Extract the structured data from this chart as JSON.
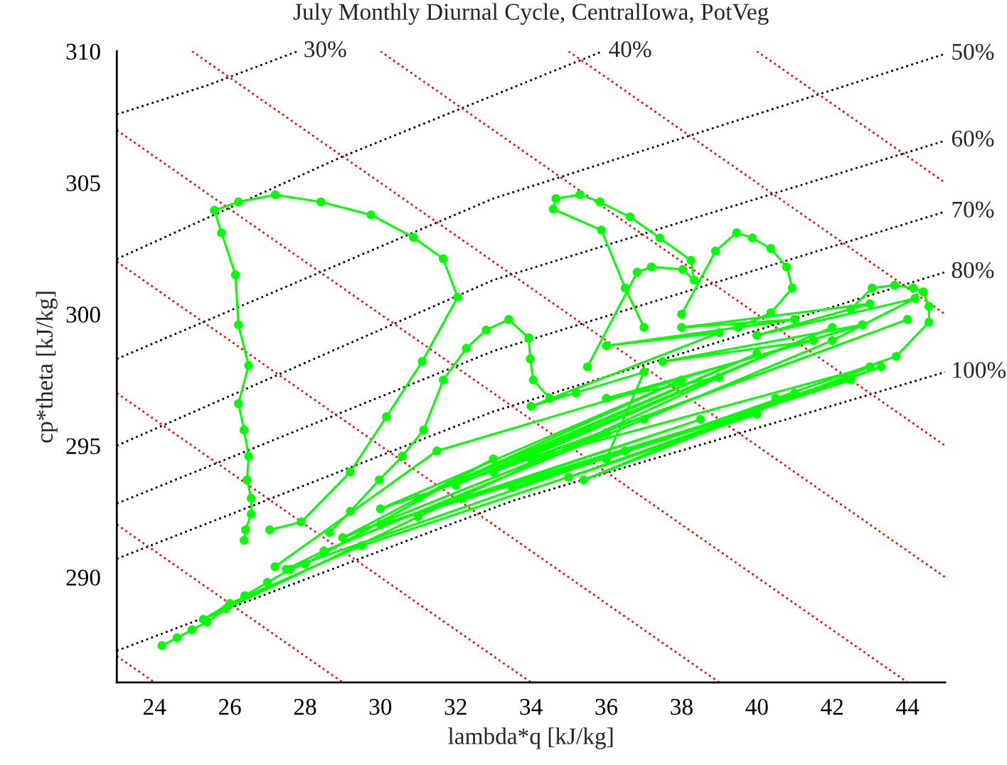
{
  "chart_data": {
    "type": "line",
    "title": "July Monthly Diurnal Cycle, CentralIowa, PotVeg",
    "xlabel": "lambda*q [kJ/kg]",
    "ylabel": "cp*theta [kJ/kg]",
    "xlim": [
      23,
      45
    ],
    "ylim": [
      286,
      310
    ],
    "xticks": [
      24,
      26,
      28,
      30,
      32,
      34,
      36,
      38,
      40,
      42,
      44
    ],
    "yticks": [
      290,
      295,
      300,
      305,
      310
    ],
    "grid": false,
    "legend": false,
    "series": [
      {
        "color": "#000000",
        "line_style": "dotted",
        "marker": "none",
        "x": [
          23,
          25.4,
          27.8
        ],
        "values": [
          307.6,
          308.7,
          310
        ]
      },
      {
        "color": "#000000",
        "line_style": "dotted",
        "marker": "none",
        "x": [
          23,
          29,
          35.9
        ],
        "values": [
          302.1,
          306.0,
          310
        ]
      },
      {
        "color": "#000000",
        "line_style": "dotted",
        "marker": "none",
        "x": [
          23,
          33,
          45
        ],
        "values": [
          298.3,
          304.4,
          309.9
        ]
      },
      {
        "color": "#000000",
        "line_style": "dotted",
        "marker": "none",
        "x": [
          23,
          33,
          45
        ],
        "values": [
          295.0,
          301.3,
          306.6
        ]
      },
      {
        "color": "#000000",
        "line_style": "dotted",
        "marker": "none",
        "x": [
          23,
          33,
          45
        ],
        "values": [
          292.8,
          298.6,
          303.9
        ]
      },
      {
        "color": "#000000",
        "line_style": "dotted",
        "marker": "none",
        "x": [
          23,
          33,
          45
        ],
        "values": [
          290.7,
          296.3,
          301.6
        ]
      },
      {
        "color": "#000000",
        "line_style": "dotted",
        "marker": "none",
        "x": [
          23,
          33.5,
          45
        ],
        "values": [
          287.2,
          292.9,
          297.8
        ]
      },
      {
        "color": "#ff0000",
        "line_style": "dotted",
        "marker": "none",
        "x": [
          23,
          24
        ],
        "values": [
          287,
          286
        ]
      },
      {
        "color": "#ff0000",
        "line_style": "dotted",
        "marker": "none",
        "x": [
          23,
          29
        ],
        "values": [
          292,
          286
        ]
      },
      {
        "color": "#ff0000",
        "line_style": "dotted",
        "marker": "none",
        "x": [
          23,
          34
        ],
        "values": [
          297,
          286
        ]
      },
      {
        "color": "#ff0000",
        "line_style": "dotted",
        "marker": "none",
        "x": [
          23,
          39
        ],
        "values": [
          302,
          286
        ]
      },
      {
        "color": "#ff0000",
        "line_style": "dotted",
        "marker": "none",
        "x": [
          23,
          44
        ],
        "values": [
          307,
          286
        ]
      },
      {
        "color": "#ff0000",
        "line_style": "dotted",
        "marker": "none",
        "x": [
          25,
          45
        ],
        "values": [
          310,
          290
        ]
      },
      {
        "color": "#ff0000",
        "line_style": "dotted",
        "marker": "none",
        "x": [
          30,
          45
        ],
        "values": [
          310,
          295
        ]
      },
      {
        "color": "#ff0000",
        "line_style": "dotted",
        "marker": "none",
        "x": [
          35,
          45
        ],
        "values": [
          310,
          300
        ]
      },
      {
        "color": "#ff0000",
        "line_style": "dotted",
        "marker": "none",
        "x": [
          40,
          45
        ],
        "values": [
          310,
          305
        ]
      },
      {
        "color": "#00ff00",
        "line_style": "solid",
        "marker": "circle",
        "x": [
          24.2,
          24.6,
          25.0,
          25.4,
          25.9,
          26.4,
          27.0,
          27.6,
          28.0,
          33.0,
          29.0,
          36.0,
          30.0,
          38.0,
          31.0,
          40.0,
          32.0,
          42.0,
          33.0,
          44.0,
          34.0,
          43.0,
          35.4,
          41.0,
          36.0,
          37.0,
          34.0,
          39.0,
          36.0,
          41.0,
          38.0,
          43.0,
          40.0,
          44.2,
          42.0,
          37.0,
          28.5,
          27.5,
          36.5,
          30.0,
          38.5,
          32.2,
          42.5,
          33.5,
          43.3,
          35.0,
          40.0,
          29.5,
          26.0,
          25.3,
          31.0,
          39.0,
          36.0,
          41.5,
          37.5,
          42.8,
          31.5,
          27.2
        ],
        "values": [
          287.4,
          287.7,
          288.0,
          288.3,
          288.8,
          289.3,
          289.8,
          290.3,
          290.5,
          294.5,
          291.5,
          295.5,
          292.6,
          297.5,
          293.0,
          298.5,
          293.5,
          299.5,
          294.0,
          299.8,
          294.5,
          298.0,
          293.7,
          297.0,
          294.5,
          297.8,
          296.5,
          299.3,
          298.8,
          299.8,
          299.5,
          300.4,
          299.2,
          300.6,
          299.0,
          296.0,
          291.0,
          290.3,
          294.8,
          292.0,
          296.0,
          293.0,
          297.5,
          293.4,
          298.0,
          293.8,
          296.2,
          291.2,
          289.0,
          288.4,
          292.3,
          297.6,
          296.8,
          299.0,
          298.2,
          299.6,
          294.8,
          290.4
        ]
      },
      {
        "color": "#00ff00",
        "line_style": "solid",
        "marker": "circle",
        "x": [
          27.06,
          27.9,
          29.2,
          30.16,
          31.11,
          32.05,
          31.67,
          30.88,
          29.75,
          28.42,
          27.21,
          26.23,
          25.59,
          25.78,
          26.15,
          26.23,
          26.5,
          26.23,
          26.38,
          26.5,
          26.46,
          26.57,
          26.57,
          26.42,
          26.38
        ],
        "values": [
          291.8,
          292.1,
          294.0,
          296.1,
          298.2,
          300.65,
          302.11,
          302.92,
          303.78,
          304.27,
          304.54,
          304.27,
          303.95,
          303.1,
          301.5,
          299.6,
          298.05,
          296.6,
          295.6,
          294.6,
          293.7,
          293.0,
          292.4,
          291.8,
          291.4
        ]
      },
      {
        "color": "#00ff00",
        "line_style": "solid",
        "marker": "circle",
        "x": [
          28.65,
          29.2,
          29.97,
          30.58,
          31.15,
          31.67,
          32.28,
          32.81,
          33.41,
          33.94,
          33.98,
          34.06,
          34.5,
          35.2
        ],
        "values": [
          291.7,
          292.5,
          293.7,
          294.6,
          295.6,
          297.5,
          298.7,
          299.4,
          299.8,
          299.1,
          298.3,
          297.5,
          296.8,
          297.0
        ]
      },
      {
        "color": "#00ff00",
        "line_style": "solid",
        "marker": "circle",
        "x": [
          35.5,
          36.82,
          37.2,
          38.03,
          38.33,
          38.25,
          37.42,
          36.63,
          35.83,
          35.3,
          34.66,
          34.59,
          35.87,
          36.5,
          37.0
        ],
        "values": [
          298.0,
          301.6,
          301.8,
          301.7,
          301.3,
          302.05,
          302.9,
          303.7,
          304.27,
          304.55,
          304.4,
          304.0,
          303.2,
          301.0,
          299.5
        ]
      },
      {
        "color": "#00ff00",
        "line_style": "solid",
        "marker": "circle",
        "x": [
          38.0,
          38.9,
          39.46,
          39.88,
          40.37,
          40.79,
          40.94,
          40.37,
          39.5
        ],
        "values": [
          300.0,
          302.4,
          303.1,
          302.9,
          302.5,
          301.8,
          301.0,
          300.05,
          299.5
        ]
      },
      {
        "color": "#00ff00",
        "line_style": "solid",
        "marker": "circle",
        "x": [
          42.5,
          43.06,
          43.66,
          44.15,
          44.42,
          44.57,
          44.57,
          43.7,
          40.5
        ],
        "values": [
          300.2,
          301.0,
          301.1,
          301.0,
          300.85,
          300.3,
          299.7,
          298.4,
          296.8
        ]
      }
    ],
    "annotations": [
      {
        "text": "30%",
        "x": 27.8,
        "y": 310
      },
      {
        "text": "40%",
        "x": 35.9,
        "y": 310
      },
      {
        "text": "50%",
        "x": 45,
        "y": 309.9
      },
      {
        "text": "60%",
        "x": 45,
        "y": 306.6
      },
      {
        "text": "70%",
        "x": 45,
        "y": 303.9
      },
      {
        "text": "80%",
        "x": 45,
        "y": 301.6
      },
      {
        "text": "100%",
        "x": 45,
        "y": 297.8
      }
    ]
  }
}
